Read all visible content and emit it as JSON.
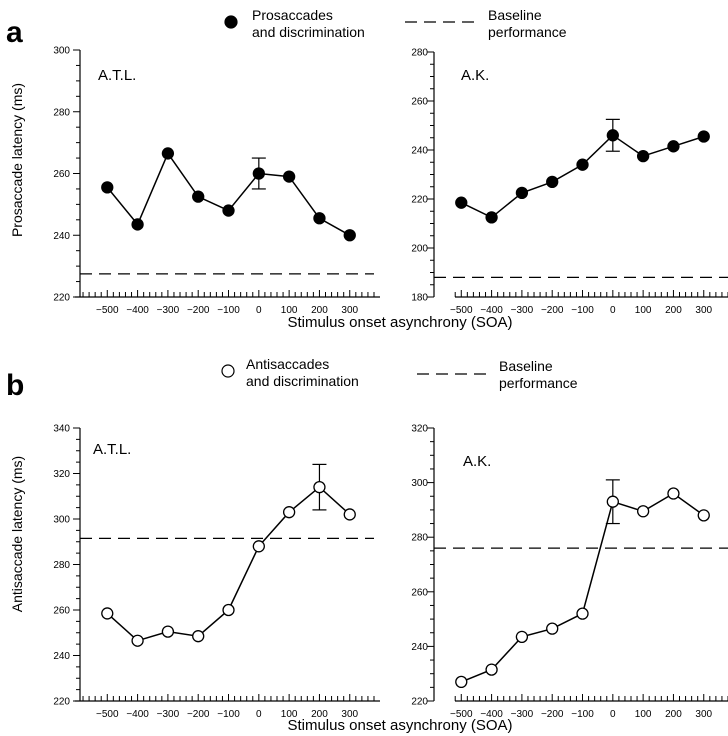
{
  "panels": [
    {
      "letter": "a",
      "legend_marker": "filled-circle",
      "legend_line1": "Prosaccades",
      "legend_line2": "and discrimination",
      "baseline_line1": "Baseline",
      "baseline_line2": "performance",
      "ylabel": "Prosaccade latency (ms)",
      "xlabel": "Stimulus onset asynchrony (SOA)"
    },
    {
      "letter": "b",
      "legend_marker": "open-circle",
      "legend_line1": "Antisaccades",
      "legend_line2": "and discrimination",
      "baseline_line1": "Baseline",
      "baseline_line2": "performance",
      "ylabel": "Antisaccade latency (ms)",
      "xlabel": "Stimulus onset asynchrony (SOA)"
    }
  ],
  "chart_data": [
    {
      "type": "line",
      "panel": "a",
      "subject": "A.T.L.",
      "marker": "filled",
      "x": [
        -500,
        -400,
        -300,
        -200,
        -100,
        0,
        100,
        200,
        300
      ],
      "y": [
        255.5,
        243.5,
        266.5,
        252.5,
        248,
        260,
        259,
        245.5,
        240
      ],
      "error_bar": {
        "x": 0,
        "low": 255,
        "high": 265
      },
      "baseline": 227.5,
      "xlim": [
        -590,
        380
      ],
      "ylim": [
        220,
        300
      ],
      "yticks": [
        220,
        240,
        260,
        280,
        300
      ],
      "xticks": [
        -500,
        -400,
        -300,
        -200,
        -100,
        0,
        100,
        200,
        300
      ],
      "ylabel": "Prosaccade latency (ms)",
      "xlabel": "Stimulus onset asynchrony (SOA)"
    },
    {
      "type": "line",
      "panel": "a",
      "subject": "A.K.",
      "marker": "filled",
      "x": [
        -500,
        -400,
        -300,
        -200,
        -100,
        0,
        100,
        200,
        300
      ],
      "y": [
        218.5,
        212.5,
        222.5,
        227,
        234,
        246,
        237.5,
        241.5,
        245.5
      ],
      "error_bar": {
        "x": 0,
        "low": 239.5,
        "high": 252.5
      },
      "baseline": 188,
      "xlim": [
        -590,
        380
      ],
      "ylim": [
        180,
        280
      ],
      "yticks": [
        180,
        200,
        220,
        240,
        260,
        280
      ],
      "xticks": [
        -500,
        -400,
        -300,
        -200,
        -100,
        0,
        100,
        200,
        300
      ],
      "xlabel": "Stimulus onset asynchrony (SOA)"
    },
    {
      "type": "line",
      "panel": "b",
      "subject": "A.T.L.",
      "marker": "open",
      "x": [
        -500,
        -400,
        -300,
        -200,
        -100,
        0,
        100,
        200,
        300
      ],
      "y": [
        258.5,
        246.5,
        250.5,
        248.5,
        260,
        288,
        303,
        314,
        302
      ],
      "error_bar": {
        "x": 200,
        "low": 304,
        "high": 324
      },
      "baseline": 291.5,
      "xlim": [
        -590,
        380
      ],
      "ylim": [
        220,
        340
      ],
      "yticks": [
        220,
        240,
        260,
        280,
        300,
        320,
        340
      ],
      "xticks": [
        -500,
        -400,
        -300,
        -200,
        -100,
        0,
        100,
        200,
        300
      ],
      "ylabel": "Antisaccade latency (ms)",
      "xlabel": "Stimulus onset asynchrony (SOA)"
    },
    {
      "type": "line",
      "panel": "b",
      "subject": "A.K.",
      "marker": "open",
      "x": [
        -500,
        -400,
        -300,
        -200,
        -100,
        0,
        100,
        200,
        300
      ],
      "y": [
        227,
        231.5,
        243.5,
        246.5,
        252,
        293,
        289.5,
        296,
        288
      ],
      "error_bar": {
        "x": 0,
        "low": 285,
        "high": 301
      },
      "baseline": 276,
      "xlim": [
        -590,
        380
      ],
      "ylim": [
        220,
        320
      ],
      "yticks": [
        220,
        240,
        260,
        280,
        300,
        320
      ],
      "xticks": [
        -500,
        -400,
        -300,
        -200,
        -100,
        0,
        100,
        200,
        300
      ],
      "xlabel": "Stimulus onset asynchrony (SOA)"
    }
  ]
}
